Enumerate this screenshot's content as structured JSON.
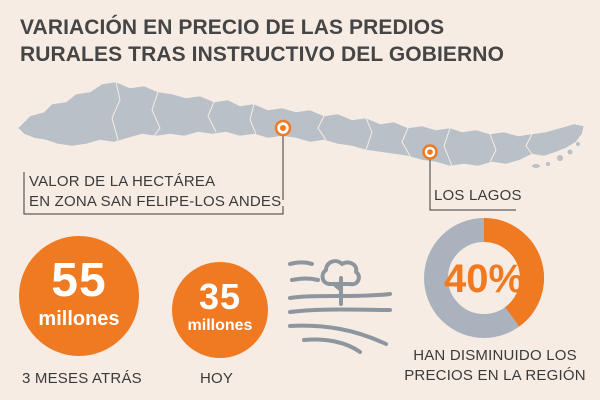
{
  "title": {
    "line1": "VARIACIÓN EN PRECIO DE LAS PREDIOS",
    "line2": "RURALES TRAS INSTRUCTIVO DEL GOBIERNO"
  },
  "callouts": {
    "san_felipe": {
      "line1": "VALOR DE LA HECTÁREA",
      "line2": "EN ZONA SAN FELIPE-LOS ANDES"
    },
    "los_lagos": {
      "label": "LOS LAGOS"
    }
  },
  "stats": [
    {
      "value": "55",
      "unit": "millones",
      "label": "3 MESES ATRÁS"
    },
    {
      "value": "35",
      "unit": "millones",
      "label": "HOY"
    }
  ],
  "donut": {
    "percent_label": "40%",
    "percent": 40,
    "caption_line1": "HAN DISMINUIDO LOS",
    "caption_line2": "PRECIOS EN LA REGIÓN"
  },
  "colors": {
    "accent": "#f07a22",
    "map": "#b9c0c8",
    "ring": "#aab3bd",
    "background": "#f6ece4",
    "text": "#3a3a3a"
  },
  "icons": [
    "map-pin-icon",
    "farm-field-icon",
    "tree-icon"
  ]
}
